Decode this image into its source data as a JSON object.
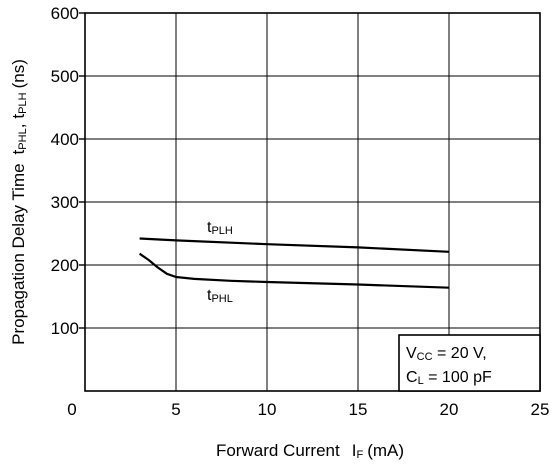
{
  "chart_data": {
    "type": "line",
    "xlabel": "Forward Current",
    "xlabel_symbol_main": "I",
    "xlabel_symbol_sub": "F",
    "xlabel_unit": "(mA)",
    "ylabel": "Propagation Delay Time",
    "ylabel_sym1_main": "t",
    "ylabel_sym1_sub": "PHL",
    "ylabel_sep": ",",
    "ylabel_sym2_main": "t",
    "ylabel_sym2_sub": "PLH",
    "ylabel_unit": "(ns)",
    "xlim": [
      0,
      25
    ],
    "ylim": [
      0,
      600
    ],
    "x_ticks": [
      "0",
      "5",
      "10",
      "15",
      "20",
      "25"
    ],
    "y_ticks": [
      "100",
      "200",
      "300",
      "400",
      "500",
      "600"
    ],
    "grid": true,
    "series": [
      {
        "name": "tPLH",
        "label_main": "t",
        "label_sub": "PLH",
        "x": [
          3,
          5,
          10,
          15,
          20
        ],
        "y": [
          242,
          239,
          233,
          228,
          221
        ]
      },
      {
        "name": "tPHL",
        "label_main": "t",
        "label_sub": "PHL",
        "x": [
          3,
          3.5,
          4,
          4.5,
          5,
          6,
          8,
          10,
          15,
          20
        ],
        "y": [
          218,
          208,
          196,
          186,
          181,
          178,
          175,
          173,
          169,
          164
        ]
      }
    ],
    "conditions": {
      "line1_main": "V",
      "line1_sub": "CC",
      "line1_rest": " = 20 V,",
      "line2_main": "C",
      "line2_sub": "L",
      "line2_rest": " = 100 pF"
    }
  }
}
